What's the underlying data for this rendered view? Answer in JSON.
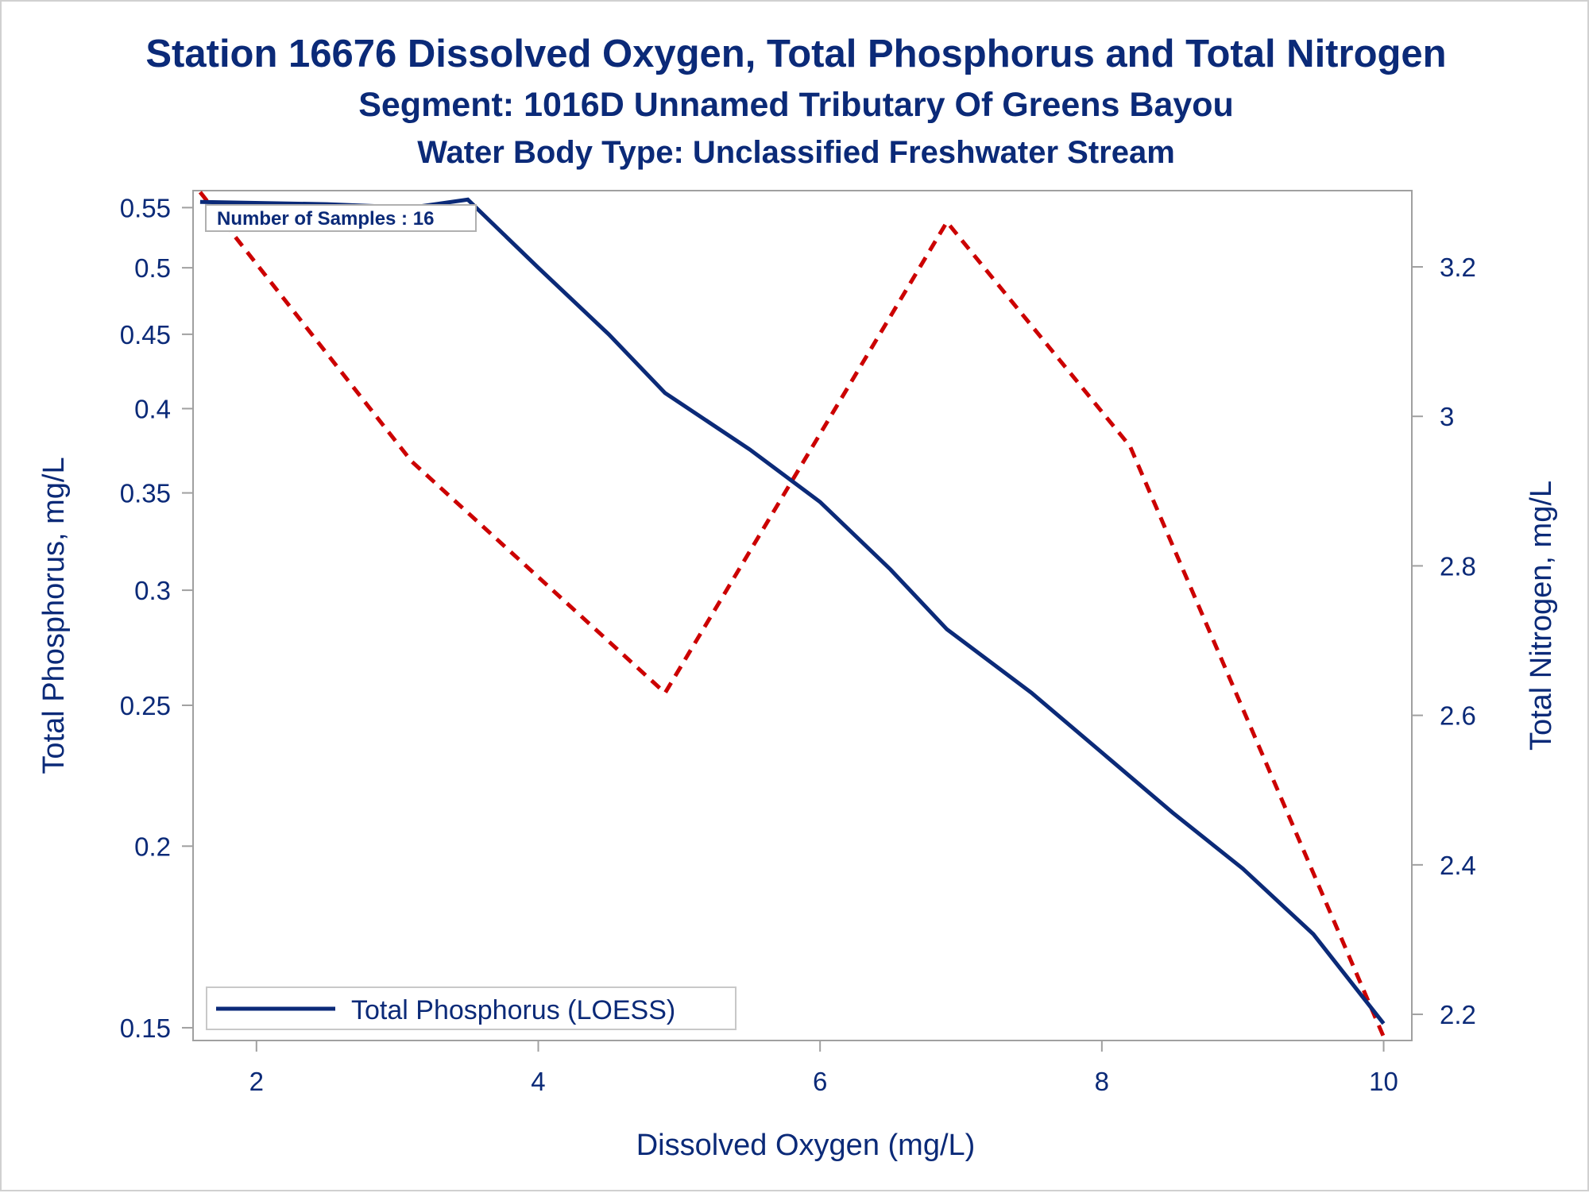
{
  "titles": {
    "line1": "Station 16676  Dissolved Oxygen, Total Phosphorus and Total Nitrogen",
    "line2": "Segment: 1016D  Unnamed Tributary Of Greens Bayou",
    "line3": "Water Body Type: Unclassified Freshwater Stream"
  },
  "inset_text": "Number of Samples : 16",
  "colors": {
    "text": "#0b2a78",
    "phosphorus_line": "#0b2a78",
    "nitrogen_line": "#cc0000",
    "frame": "#a0a0a0",
    "page_border": "#d0d0d0"
  },
  "chart_data": {
    "type": "line",
    "xlabel": "Dissolved Oxygen (mg/L)",
    "ylabel": "Total Phosphorus, mg/L",
    "y2label": "Total Nitrogen, mg/L",
    "xlim": [
      1.55,
      10.2
    ],
    "ylim": [
      0.147,
      0.565
    ],
    "y_scale": "log",
    "y2lim": [
      2.165,
      3.302
    ],
    "x_ticks": [
      2,
      4,
      6,
      8,
      10
    ],
    "x_tick_labels": [
      "2",
      "4",
      "6",
      "8",
      "10"
    ],
    "y_ticks": [
      0.15,
      0.2,
      0.25,
      0.3,
      0.35,
      0.4,
      0.45,
      0.5,
      0.55
    ],
    "y_tick_labels": [
      "0.15",
      "0.2",
      "0.25",
      "0.3",
      "0.35",
      "0.4",
      "0.45",
      "0.5",
      "0.55"
    ],
    "y2_ticks": [
      2.2,
      2.4,
      2.6,
      2.8,
      3.0,
      3.2
    ],
    "y2_tick_labels": [
      "2.2",
      "2.4",
      "2.6",
      "2.8",
      "3",
      "3.2"
    ],
    "grid": false,
    "legend": {
      "placement": "bottom-left",
      "entries": [
        "Total Phosphorus (LOESS)"
      ]
    },
    "series": [
      {
        "name": "Total Phosphorus (LOESS)",
        "axis": "left",
        "style": "solid",
        "x": [
          1.6,
          2.5,
          3.1,
          3.5,
          4.0,
          4.5,
          4.9,
          5.5,
          6.0,
          6.5,
          6.9,
          7.5,
          8.0,
          8.5,
          9.0,
          9.5,
          10.0
        ],
        "y": [
          0.555,
          0.553,
          0.55,
          0.557,
          0.5,
          0.45,
          0.41,
          0.375,
          0.345,
          0.31,
          0.282,
          0.255,
          0.232,
          0.211,
          0.193,
          0.174,
          0.151
        ]
      },
      {
        "axis": "right",
        "style": "dashed",
        "x": [
          1.6,
          3.1,
          4.9,
          6.9,
          8.2,
          10.0
        ],
        "y": [
          3.3,
          2.94,
          2.63,
          3.26,
          2.96,
          2.17
        ]
      }
    ]
  }
}
